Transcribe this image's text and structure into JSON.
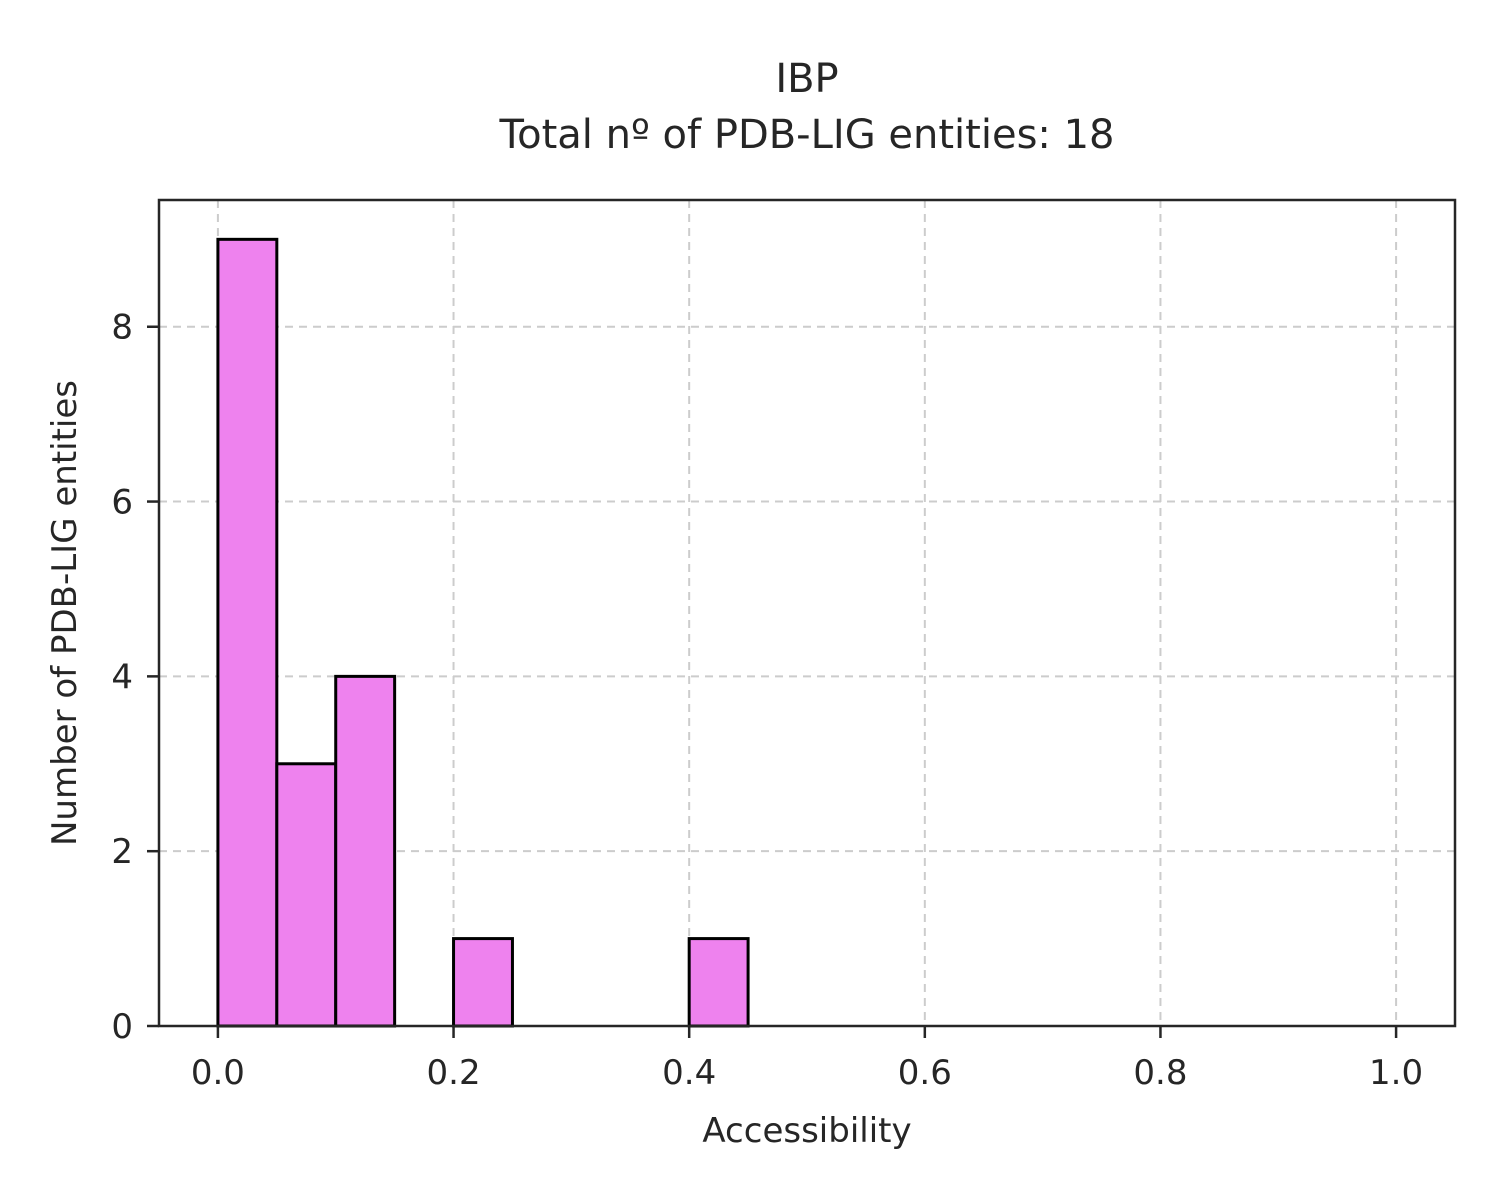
{
  "chart_data": {
    "type": "bar",
    "title_line1": "IBP",
    "title_line2": "Total nº of PDB-LIG entities: 18",
    "xlabel": "Accessibility",
    "ylabel": "Number of PDB-LIG entities",
    "xlim": [
      -0.05,
      1.05
    ],
    "ylim": [
      0,
      9.45
    ],
    "xticks": [
      "0.0",
      "0.2",
      "0.4",
      "0.6",
      "0.8",
      "1.0"
    ],
    "xtick_values": [
      0.0,
      0.2,
      0.4,
      0.6,
      0.8,
      1.0
    ],
    "yticks": [
      "0",
      "2",
      "4",
      "6",
      "8"
    ],
    "ytick_values": [
      0,
      2,
      4,
      6,
      8
    ],
    "grid": true,
    "bar_color": "#ee82ee",
    "edge_color": "#000000",
    "bins": [
      {
        "start": 0.0,
        "end": 0.05,
        "count": 9
      },
      {
        "start": 0.05,
        "end": 0.1,
        "count": 3
      },
      {
        "start": 0.1,
        "end": 0.15,
        "count": 4
      },
      {
        "start": 0.15,
        "end": 0.2,
        "count": 0
      },
      {
        "start": 0.2,
        "end": 0.25,
        "count": 1
      },
      {
        "start": 0.25,
        "end": 0.3,
        "count": 0
      },
      {
        "start": 0.3,
        "end": 0.35,
        "count": 0
      },
      {
        "start": 0.35,
        "end": 0.4,
        "count": 0
      },
      {
        "start": 0.4,
        "end": 0.45,
        "count": 1
      },
      {
        "start": 0.45,
        "end": 0.5,
        "count": 0
      },
      {
        "start": 0.5,
        "end": 0.55,
        "count": 0
      },
      {
        "start": 0.55,
        "end": 0.6,
        "count": 0
      },
      {
        "start": 0.6,
        "end": 0.65,
        "count": 0
      },
      {
        "start": 0.65,
        "end": 0.7,
        "count": 0
      },
      {
        "start": 0.7,
        "end": 0.75,
        "count": 0
      },
      {
        "start": 0.75,
        "end": 0.8,
        "count": 0
      },
      {
        "start": 0.8,
        "end": 0.85,
        "count": 0
      },
      {
        "start": 0.85,
        "end": 0.9,
        "count": 0
      },
      {
        "start": 0.9,
        "end": 0.95,
        "count": 0
      },
      {
        "start": 0.95,
        "end": 1.0,
        "count": 0
      }
    ]
  }
}
